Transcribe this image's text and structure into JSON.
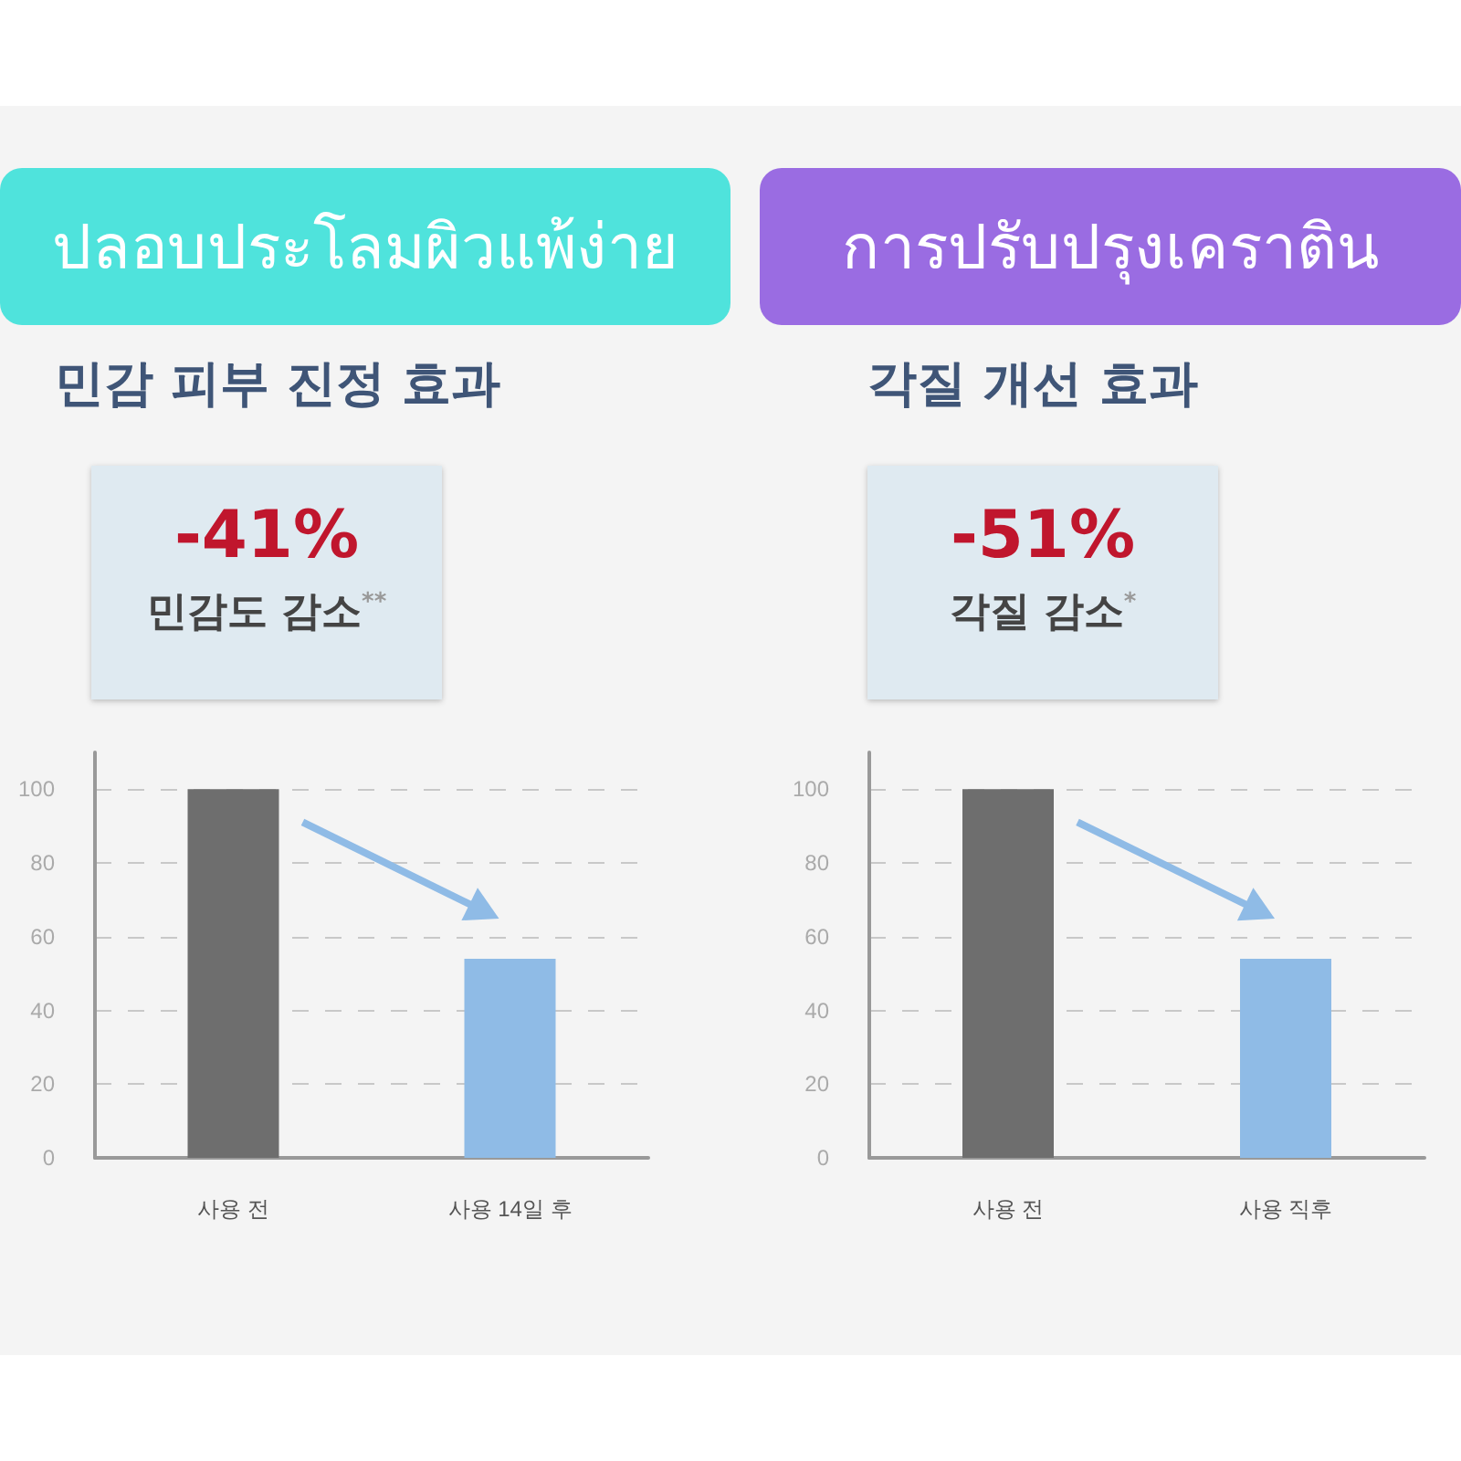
{
  "chart_data": [
    {
      "type": "bar",
      "title": "ปลอบประโลมผิวแพ้ง่าย",
      "subtitle": "민감 피부 진정 효과",
      "annotations": [
        "-41%",
        "민감도 감소$^{**}$"
      ],
      "categories": [
        "사용 전",
        "사용 14일 후"
      ],
      "values": [
        100,
        54
      ],
      "colors": [
        "#6e6e6e",
        "#8fbbe6"
      ],
      "ylim": [
        0,
        110
      ],
      "yticks": [
        0,
        20,
        40,
        60,
        80,
        100
      ],
      "grid": "y"
    },
    {
      "type": "bar",
      "title": "การปรับปรุงเคราติน",
      "subtitle": "각질 개선 효과",
      "annotations": [
        "-51%",
        "각질 감소$^{*}$"
      ],
      "categories": [
        "사용 전",
        "사용 직후"
      ],
      "values": [
        100,
        54
      ],
      "colors": [
        "#6e6e6e",
        "#8fbbe6"
      ],
      "ylim": [
        0,
        110
      ],
      "yticks": [
        0,
        20,
        40,
        60,
        80,
        100
      ],
      "grid": "y"
    }
  ]
}
